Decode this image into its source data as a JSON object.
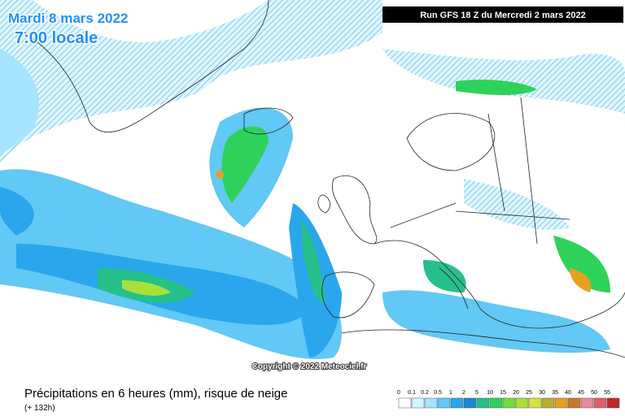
{
  "header": {
    "date": "Mardi 8 mars 2022",
    "time": "7:00 locale",
    "run": "Run GFS 18 Z du Mercredi 2 mars 2022"
  },
  "copyright": "Copyright © 2022 Meteociel.fr",
  "footer": {
    "title": "Précipitations en 6 heures (mm), risque de neige",
    "lead": "(+ 132h)"
  },
  "legend": {
    "steps": [
      {
        "label": "0",
        "color": "#ffffff"
      },
      {
        "label": "0.1",
        "color": "#d2f3ff"
      },
      {
        "label": "0.2",
        "color": "#a6e4ff"
      },
      {
        "label": "0.5",
        "color": "#62c8f5"
      },
      {
        "label": "1",
        "color": "#2aa6ec"
      },
      {
        "label": "2",
        "color": "#1a86d8"
      },
      {
        "label": "5",
        "color": "#26c08a"
      },
      {
        "label": "10",
        "color": "#2ed25a"
      },
      {
        "label": "15",
        "color": "#6ede3a"
      },
      {
        "label": "20",
        "color": "#a8e03a"
      },
      {
        "label": "25",
        "color": "#d6e23c"
      },
      {
        "label": "30",
        "color": "#b8b030"
      },
      {
        "label": "35",
        "color": "#e8a020"
      },
      {
        "label": "40",
        "color": "#c8782a"
      },
      {
        "label": "45",
        "color": "#e88a9a"
      },
      {
        "label": "50",
        "color": "#e0606a"
      },
      {
        "label": "55",
        "color": "#c02828"
      }
    ]
  }
}
